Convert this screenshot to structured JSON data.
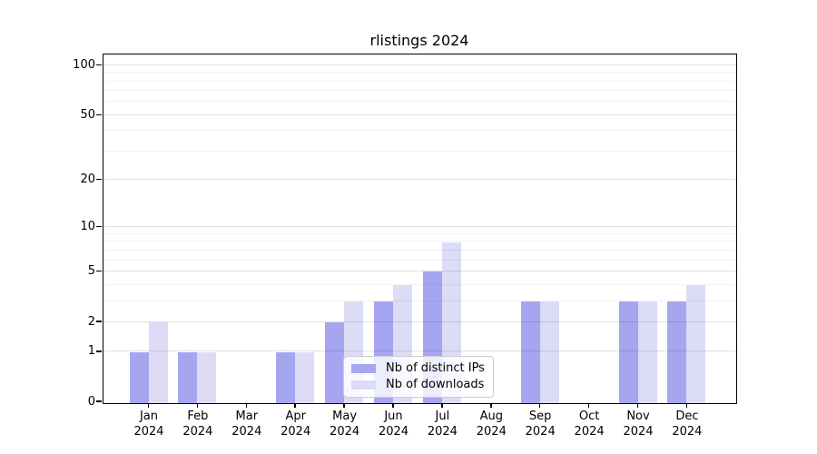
{
  "chart_data": {
    "type": "bar",
    "title": "rlistings 2024",
    "categories": [
      "Jan",
      "Feb",
      "Mar",
      "Apr",
      "May",
      "Jun",
      "Jul",
      "Aug",
      "Sep",
      "Oct",
      "Nov",
      "Dec"
    ],
    "year_label": "2024",
    "series": [
      {
        "name": "Nb of distinct IPs",
        "slug": "distinct-ips",
        "color": "#a6a6f0",
        "values": [
          1,
          1,
          0,
          1,
          2,
          3,
          5,
          0,
          3,
          0,
          3,
          3
        ]
      },
      {
        "name": "Nb of downloads",
        "slug": "downloads",
        "color": "#dcdcf7",
        "values": [
          2,
          1,
          0,
          1,
          3,
          4,
          8,
          0,
          3,
          0,
          3,
          4
        ]
      }
    ],
    "y_axis": {
      "scale": "log1p",
      "ticks": [
        0,
        1,
        2,
        5,
        10,
        20,
        50,
        100
      ],
      "minor_gridlines": [
        3,
        4,
        6,
        7,
        8,
        9,
        30,
        40,
        60,
        70,
        80,
        90
      ],
      "max": 116
    },
    "xlabel": "",
    "ylabel": "",
    "grid": true,
    "legend_position": "bottom-center"
  },
  "colors": {
    "spine": "#000000",
    "major_grid": "rgba(0,0,0,0.12)",
    "minor_grid": "rgba(0,0,0,0.05)",
    "legend_border": "#cccccc",
    "legend_bg": "rgba(255,255,255,0.8)",
    "background": "#ffffff"
  }
}
